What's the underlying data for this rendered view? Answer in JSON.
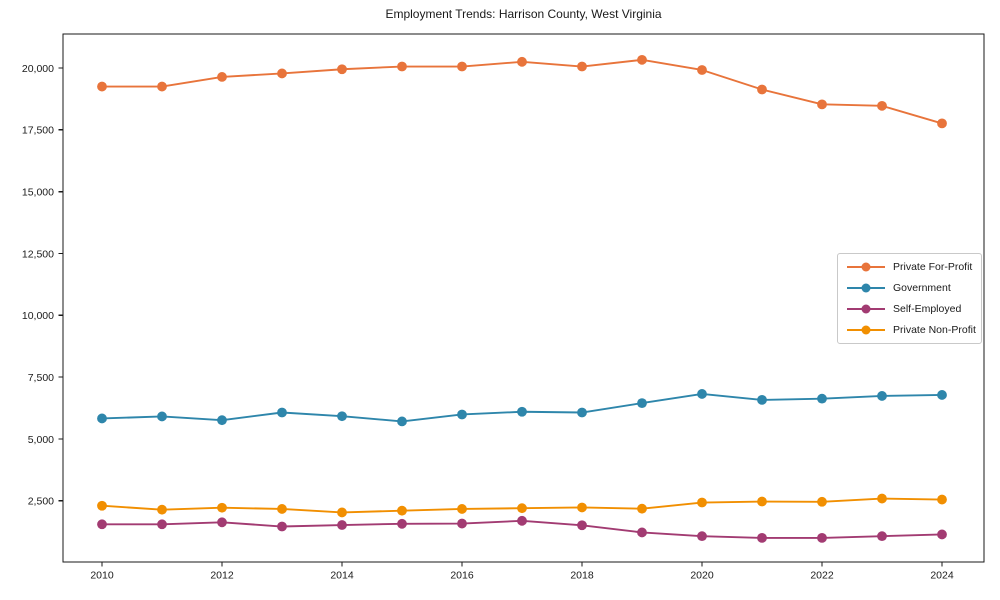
{
  "chart_data": {
    "type": "line",
    "title": "Employment Trends: Harrison County, West Virginia",
    "xlabel": "",
    "ylabel": "",
    "x": [
      2010,
      2011,
      2012,
      2013,
      2014,
      2015,
      2016,
      2017,
      2018,
      2019,
      2020,
      2021,
      2022,
      2023,
      2024
    ],
    "series": [
      {
        "name": "Private For-Profit",
        "color": "#E8743B",
        "marker": "circle",
        "values": [
          19250,
          19250,
          19640,
          19780,
          19950,
          20060,
          20060,
          20250,
          20060,
          20330,
          19920,
          19130,
          18530,
          18470,
          17760
        ]
      },
      {
        "name": "Government",
        "color": "#2E86AB",
        "marker": "circle",
        "values": [
          5830,
          5910,
          5760,
          6070,
          5920,
          5710,
          5990,
          6100,
          6070,
          6450,
          6820,
          6580,
          6630,
          6740,
          6780
        ]
      },
      {
        "name": "Self-Employed",
        "color": "#A23B72",
        "marker": "circle",
        "values": [
          1550,
          1550,
          1630,
          1460,
          1520,
          1570,
          1580,
          1690,
          1510,
          1220,
          1070,
          1000,
          1000,
          1070,
          1140
        ]
      },
      {
        "name": "Private Non-Profit",
        "color": "#F18F01",
        "marker": "circle",
        "values": [
          2300,
          2140,
          2220,
          2170,
          2030,
          2100,
          2170,
          2200,
          2230,
          2180,
          2430,
          2470,
          2460,
          2590,
          2550
        ]
      }
    ],
    "x_ticks": {
      "values": [
        2010,
        2012,
        2014,
        2016,
        2018,
        2020,
        2022,
        2024
      ],
      "labels": [
        "2010",
        "2012",
        "2014",
        "2016",
        "2018",
        "2020",
        "2022",
        "2024"
      ]
    },
    "y_ticks": {
      "values": [
        2500,
        5000,
        7500,
        10000,
        12500,
        15000,
        17500,
        20000
      ],
      "labels": [
        "2,500",
        "5,000",
        "7,500",
        "10,000",
        "12,500",
        "15,000",
        "17,500",
        "20,000"
      ]
    },
    "xlim": [
      2009.35,
      2024.7
    ],
    "ylim": [
      25,
      21375
    ],
    "grid": false,
    "legend_position": "center-right",
    "legend_border_color": "#c9c9c9",
    "axis_color": "#1a1a1a",
    "background_color": "#ffffff"
  }
}
